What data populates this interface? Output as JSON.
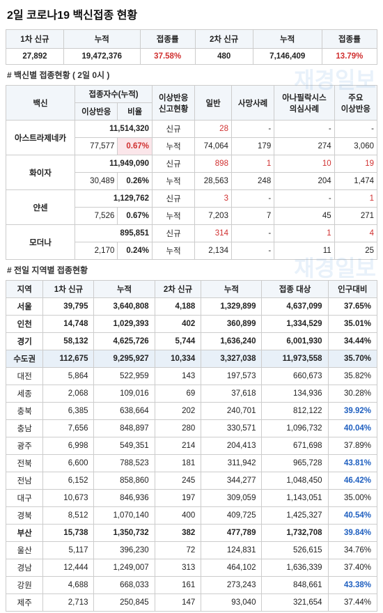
{
  "title": "2일  코로나19 백신접종 현황",
  "summary": {
    "headers": [
      "1차 신규",
      "누적",
      "접종률",
      "2차 신규",
      "누적",
      "접종률"
    ],
    "row": {
      "first_new": "27,892",
      "first_cum": "19,472,376",
      "first_rate": "37.58%",
      "second_new": "480",
      "second_cum": "7,146,409",
      "second_rate": "13.79%"
    }
  },
  "vaccine_section_label": "# 백신별 접종현황 ( 2일 0시   )",
  "vaccine_headers": {
    "name": "백신",
    "count": "접종자수(누적)",
    "count_sub1": "이상반응",
    "count_sub2": "비율",
    "report": "이상반응\n신고현황",
    "general": "일반",
    "death": "사망사례",
    "anaph": "아나필락시스\n의심사례",
    "major": "주요\n이상반응"
  },
  "vaccines": [
    {
      "name": "아스트라제네카",
      "cum": "11,514,320",
      "adv": "77,577",
      "rate": "0.67%",
      "rate_highlight": true,
      "new": {
        "gen": "28",
        "death": "-",
        "anaph": "-",
        "major": "-",
        "gen_red": true
      },
      "cumr": {
        "gen": "74,064",
        "death": "179",
        "anaph": "274",
        "major": "3,060"
      }
    },
    {
      "name": "화이자",
      "cum": "11,949,090",
      "adv": "30,489",
      "rate": "0.26%",
      "rate_highlight": false,
      "new": {
        "gen": "898",
        "death": "1",
        "anaph": "10",
        "major": "19",
        "gen_red": true,
        "death_red": true,
        "anaph_red": true,
        "major_red": true
      },
      "cumr": {
        "gen": "28,563",
        "death": "248",
        "anaph": "204",
        "major": "1,474"
      }
    },
    {
      "name": "얀센",
      "cum": "1,129,762",
      "adv": "7,526",
      "rate": "0.67%",
      "rate_highlight": false,
      "new": {
        "gen": "3",
        "death": "-",
        "anaph": "-",
        "major": "1",
        "gen_red": true,
        "major_red": true
      },
      "cumr": {
        "gen": "7,203",
        "death": "7",
        "anaph": "45",
        "major": "271"
      }
    },
    {
      "name": "모더나",
      "cum": "895,851",
      "adv": "2,170",
      "rate": "0.24%",
      "rate_highlight": false,
      "new": {
        "gen": "314",
        "death": "-",
        "anaph": "1",
        "major": "4",
        "gen_red": true,
        "anaph_red": true,
        "major_red": true
      },
      "cumr": {
        "gen": "2,134",
        "death": "-",
        "anaph": "11",
        "major": "25"
      }
    }
  ],
  "region_section_label": "# 전일 지역별 접종현황",
  "region_headers": [
    "지역",
    "1차 신규",
    "누적",
    "2차 신규",
    "누적",
    "접종 대상",
    "인구대비"
  ],
  "regions": [
    {
      "name": "서울",
      "a": "39,795",
      "b": "3,640,808",
      "c": "4,188",
      "d": "1,329,899",
      "e": "4,637,099",
      "f": "37.65%",
      "bold": true
    },
    {
      "name": "인천",
      "a": "14,748",
      "b": "1,029,393",
      "c": "402",
      "d": "360,899",
      "e": "1,334,529",
      "f": "35.01%",
      "bold": true
    },
    {
      "name": "경기",
      "a": "58,132",
      "b": "4,625,726",
      "c": "5,744",
      "d": "1,636,240",
      "e": "6,001,930",
      "f": "34.44%",
      "bold": true
    },
    {
      "name": "수도권",
      "a": "112,675",
      "b": "9,295,927",
      "c": "10,334",
      "d": "3,327,038",
      "e": "11,973,558",
      "f": "35.70%",
      "highlight": true
    },
    {
      "name": "대전",
      "a": "5,864",
      "b": "522,959",
      "c": "143",
      "d": "197,573",
      "e": "660,673",
      "f": "35.82%"
    },
    {
      "name": "세종",
      "a": "2,068",
      "b": "109,016",
      "c": "69",
      "d": "37,618",
      "e": "134,936",
      "f": "30.28%"
    },
    {
      "name": "충북",
      "a": "6,385",
      "b": "638,664",
      "c": "202",
      "d": "240,701",
      "e": "812,122",
      "f": "39.92%",
      "f_blue": true
    },
    {
      "name": "충남",
      "a": "7,656",
      "b": "848,897",
      "c": "280",
      "d": "330,571",
      "e": "1,096,732",
      "f": "40.04%",
      "f_blue": true
    },
    {
      "name": "광주",
      "a": "6,998",
      "b": "549,351",
      "c": "214",
      "d": "204,413",
      "e": "671,698",
      "f": "37.89%"
    },
    {
      "name": "전북",
      "a": "6,600",
      "b": "788,523",
      "c": "181",
      "d": "311,942",
      "e": "965,728",
      "f": "43.81%",
      "f_blue": true
    },
    {
      "name": "전남",
      "a": "6,152",
      "b": "858,860",
      "c": "245",
      "d": "344,277",
      "e": "1,048,450",
      "f": "46.42%",
      "f_blue": true
    },
    {
      "name": "대구",
      "a": "10,673",
      "b": "846,936",
      "c": "197",
      "d": "309,059",
      "e": "1,143,051",
      "f": "35.00%"
    },
    {
      "name": "경북",
      "a": "8,512",
      "b": "1,070,140",
      "c": "400",
      "d": "409,725",
      "e": "1,425,327",
      "f": "40.54%",
      "f_blue": true
    },
    {
      "name": "부산",
      "a": "15,738",
      "b": "1,350,732",
      "c": "382",
      "d": "477,789",
      "e": "1,732,708",
      "f": "39.84%",
      "bold": true,
      "f_blue": true
    },
    {
      "name": "울산",
      "a": "5,117",
      "b": "396,230",
      "c": "72",
      "d": "124,831",
      "e": "526,615",
      "f": "34.76%"
    },
    {
      "name": "경남",
      "a": "12,444",
      "b": "1,249,007",
      "c": "313",
      "d": "464,102",
      "e": "1,636,339",
      "f": "37.40%"
    },
    {
      "name": "강원",
      "a": "4,688",
      "b": "668,033",
      "c": "161",
      "d": "273,243",
      "e": "848,661",
      "f": "43.38%",
      "f_blue": true
    },
    {
      "name": "제주",
      "a": "2,713",
      "b": "250,845",
      "c": "147",
      "d": "93,040",
      "e": "321,654",
      "f": "37.44%"
    }
  ],
  "labels": {
    "new": "신규",
    "cum": "누적"
  }
}
